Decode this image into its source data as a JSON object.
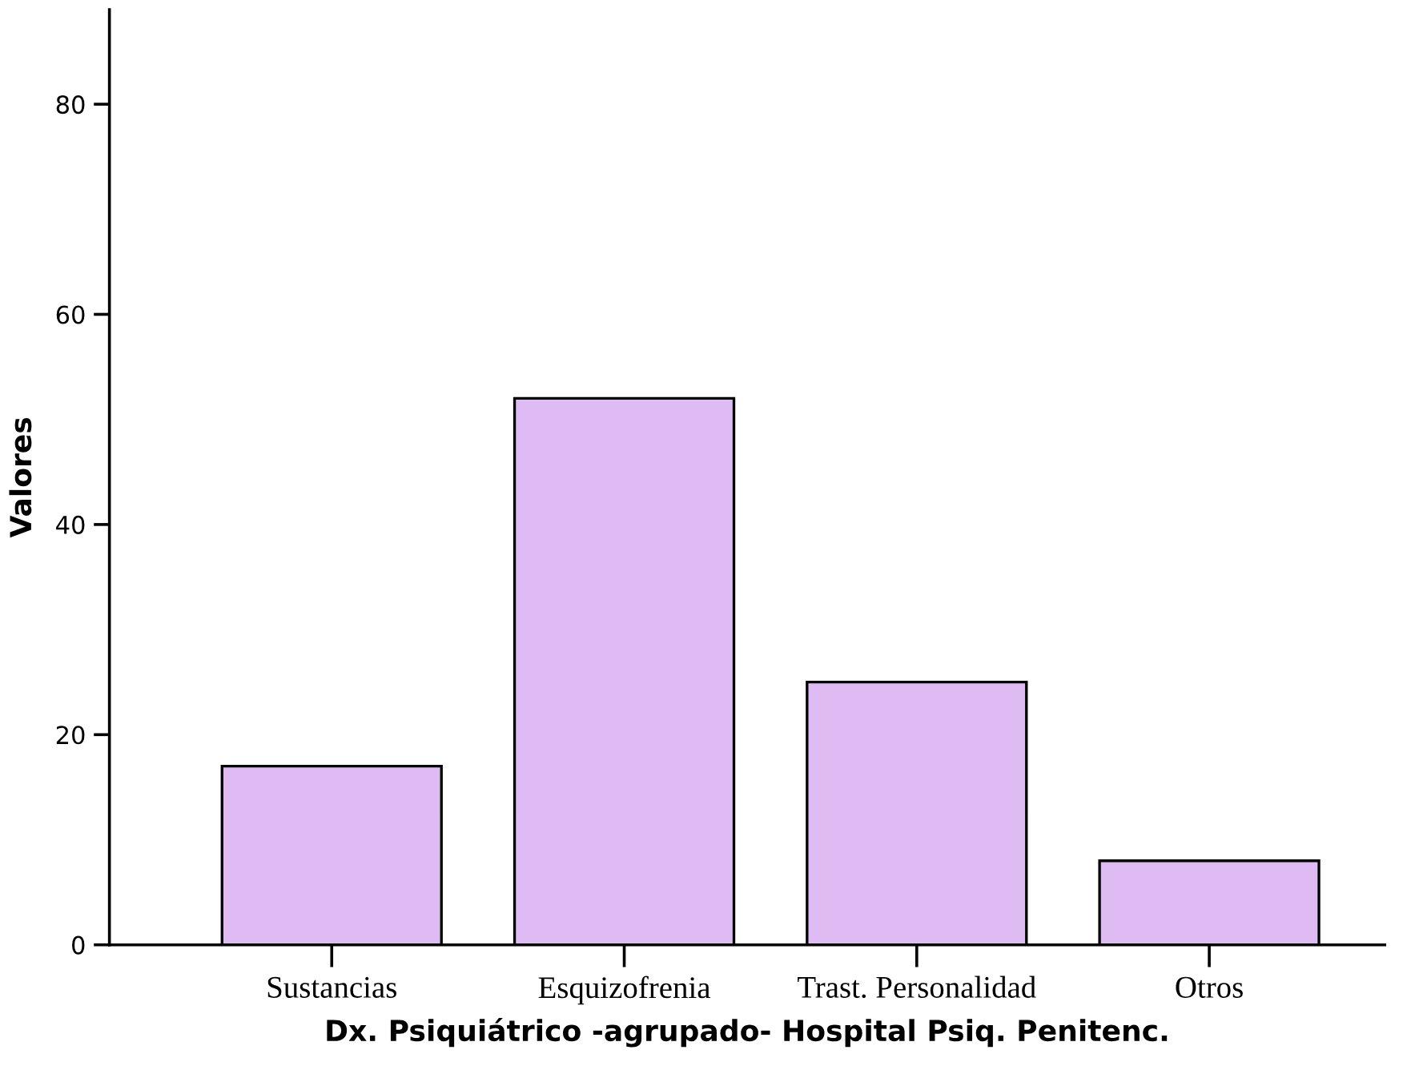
{
  "chart_data": {
    "type": "bar",
    "xlabel": "Dx. Psiquiátrico -agrupado- Hospital Psiq. Penitenc.",
    "ylabel": "Valores",
    "categories": [
      "Sustancias",
      "Esquizofrenia",
      "Trast. Personalidad",
      "Otros"
    ],
    "values": [
      17,
      52,
      25,
      8
    ],
    "color": "#dfbbf3",
    "ylim": [
      0,
      89
    ],
    "yticks": [
      0,
      20,
      40,
      60,
      80
    ],
    "grid": false,
    "legend": false
  }
}
